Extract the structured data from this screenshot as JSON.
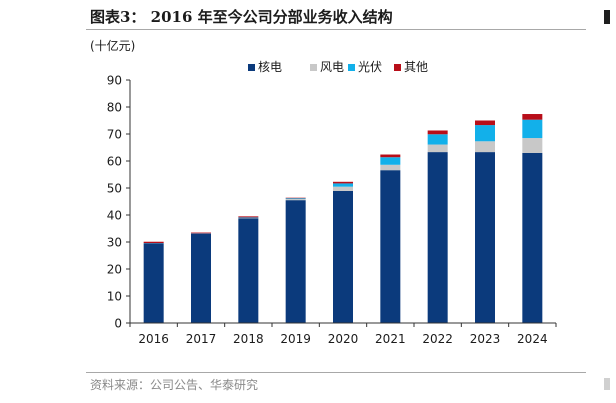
{
  "figure": {
    "title": "图表3： 2016 年至今公司分部业务收入结构",
    "source": "资料来源：公司公告、华泰研究"
  },
  "colors": {
    "nuclear": "#0b3a7c",
    "wind": "#c8c8c8",
    "solar": "#12b0ea",
    "other": "#b80e19",
    "axis": "#333333",
    "text": "#1b1b1b",
    "rule": "#a8a8a8"
  },
  "chart_data": {
    "type": "bar",
    "stacked": true,
    "unit_label": "(十亿元)",
    "categories": [
      "2016",
      "2017",
      "2018",
      "2019",
      "2020",
      "2021",
      "2022",
      "2023",
      "2024"
    ],
    "series": [
      {
        "name": "核电",
        "color_key": "nuclear",
        "values": [
          29.5,
          33.1,
          38.8,
          45.5,
          48.9,
          56.6,
          63.3,
          63.3,
          63.0
        ]
      },
      {
        "name": "风电",
        "color_key": "wind",
        "values": [
          0.0,
          0.0,
          0.1,
          0.4,
          1.6,
          2.0,
          2.8,
          4.0,
          5.5
        ]
      },
      {
        "name": "光伏",
        "color_key": "solar",
        "values": [
          0.1,
          0.1,
          0.2,
          0.3,
          1.2,
          2.8,
          3.8,
          6.0,
          6.8
        ]
      },
      {
        "name": "其他",
        "color_key": "other",
        "values": [
          0.5,
          0.3,
          0.4,
          0.2,
          0.6,
          1.0,
          1.4,
          1.7,
          2.1
        ]
      }
    ],
    "ylim": [
      0,
      90
    ],
    "yticks": [
      0,
      10,
      20,
      30,
      40,
      50,
      60,
      70,
      80,
      90
    ],
    "legend_position": "top-center",
    "grid": false
  }
}
